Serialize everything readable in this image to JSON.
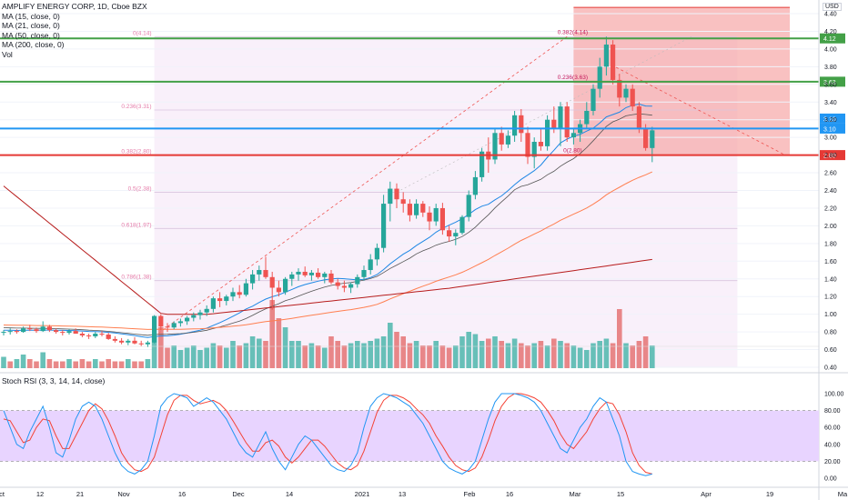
{
  "legend": {
    "symbol": "AMPLIFY ENERGY CORP, 1D, Cboe BZX",
    "studies": [
      "MA (15, close, 0)",
      "MA (21, close, 0)",
      "MA (50, close, 0)",
      "MA (200, close, 0)",
      "Vol"
    ]
  },
  "rsi_title": "Stoch RSI (3, 3, 14, 14, close)",
  "currency": "USD",
  "colors": {
    "up": "#26a69a",
    "down": "#ef5350",
    "ma15": "#1e88e5",
    "ma21": "#555555",
    "ma50": "#ff7f50",
    "ma200": "#b71c1c",
    "fib": "#e91e63",
    "line_green": "#43a047",
    "line_blue": "#2196f3",
    "line_red": "#e53935",
    "rsi_k": "#2196f3",
    "rsi_d": "#f44336",
    "rsi_band": "#e8d4ff"
  },
  "chart_data": {
    "type": "candlestick",
    "price_axis": {
      "min": 0.4,
      "max": 4.4,
      "ticks": [
        "0.40",
        "0.60",
        "0.80",
        "1.00",
        "1.20",
        "1.40",
        "1.60",
        "1.80",
        "2.00",
        "2.20",
        "2.40",
        "2.60",
        "2.80",
        "3.00",
        "3.20",
        "3.40",
        "3.60",
        "3.80",
        "4.00",
        "4.20",
        "4.40"
      ]
    },
    "time_labels": [
      "ct",
      "12",
      "21",
      "Nov",
      "16",
      "Dec",
      "14",
      "2021",
      "13",
      "Feb",
      "16",
      "Mar",
      "15",
      "Apr",
      "19",
      "Ma"
    ],
    "horizontal_lines": [
      {
        "price": 4.12,
        "label": "4.12",
        "color": "#43a047"
      },
      {
        "price": 3.63,
        "label": "3.63",
        "color": "#43a047"
      },
      {
        "price": 3.1,
        "label": "3.10",
        "color": "#2196f3"
      },
      {
        "price": 2.8,
        "label": "2.80",
        "color": "#e53935"
      }
    ],
    "price_labels_extra": [
      "3.10"
    ],
    "fib_levels": [
      {
        "label": "0(4.14)",
        "price": 4.14
      },
      {
        "label": "0.236(3.31)",
        "price": 3.31
      },
      {
        "label": "0.382(2.80)",
        "price": 2.8
      },
      {
        "label": "0.5(2.38)",
        "price": 2.38
      },
      {
        "label": "0.618(1.97)",
        "price": 1.97
      },
      {
        "label": "0.786(1.38)",
        "price": 1.38
      }
    ],
    "right_fib_labels": [
      {
        "label": "0.382(4.14)",
        "price": 4.14
      },
      {
        "label": "0.236(3.63)",
        "price": 3.63
      },
      {
        "label": "0(2.80)",
        "price": 2.8
      }
    ],
    "candles": [
      [
        0.79,
        0.82,
        0.76,
        0.8
      ],
      [
        0.8,
        0.84,
        0.77,
        0.81
      ],
      [
        0.81,
        0.83,
        0.78,
        0.8
      ],
      [
        0.8,
        0.86,
        0.79,
        0.84
      ],
      [
        0.84,
        0.88,
        0.81,
        0.83
      ],
      [
        0.83,
        0.85,
        0.79,
        0.81
      ],
      [
        0.81,
        0.92,
        0.8,
        0.86
      ],
      [
        0.86,
        0.88,
        0.8,
        0.82
      ],
      [
        0.82,
        0.84,
        0.78,
        0.8
      ],
      [
        0.8,
        0.82,
        0.76,
        0.79
      ],
      [
        0.79,
        0.83,
        0.77,
        0.81
      ],
      [
        0.81,
        0.84,
        0.78,
        0.78
      ],
      [
        0.78,
        0.8,
        0.74,
        0.76
      ],
      [
        0.76,
        0.78,
        0.72,
        0.75
      ],
      [
        0.75,
        0.8,
        0.73,
        0.78
      ],
      [
        0.78,
        0.81,
        0.75,
        0.77
      ],
      [
        0.77,
        0.79,
        0.71,
        0.72
      ],
      [
        0.72,
        0.75,
        0.68,
        0.7
      ],
      [
        0.7,
        0.73,
        0.66,
        0.68
      ],
      [
        0.68,
        0.72,
        0.65,
        0.7
      ],
      [
        0.7,
        0.74,
        0.66,
        0.67
      ],
      [
        0.67,
        0.7,
        0.64,
        0.66
      ],
      [
        0.66,
        0.7,
        0.63,
        0.68
      ],
      [
        0.68,
        0.99,
        0.67,
        0.98
      ],
      [
        0.98,
        1.0,
        0.82,
        0.86
      ],
      [
        0.86,
        0.9,
        0.8,
        0.85
      ],
      [
        0.85,
        0.92,
        0.83,
        0.9
      ],
      [
        0.9,
        0.95,
        0.86,
        0.92
      ],
      [
        0.92,
        0.98,
        0.88,
        0.96
      ],
      [
        0.96,
        1.02,
        0.92,
        0.99
      ],
      [
        0.99,
        1.05,
        0.94,
        1.02
      ],
      [
        1.02,
        1.1,
        0.98,
        1.06
      ],
      [
        1.06,
        1.2,
        1.02,
        1.18
      ],
      [
        1.18,
        1.25,
        1.08,
        1.15
      ],
      [
        1.15,
        1.22,
        1.1,
        1.2
      ],
      [
        1.2,
        1.3,
        1.15,
        1.25
      ],
      [
        1.25,
        1.33,
        1.18,
        1.22
      ],
      [
        1.22,
        1.4,
        1.2,
        1.35
      ],
      [
        1.35,
        1.5,
        1.28,
        1.45
      ],
      [
        1.45,
        1.55,
        1.38,
        1.5
      ],
      [
        1.5,
        1.65,
        1.4,
        1.42
      ],
      [
        1.42,
        1.48,
        1.05,
        1.3
      ],
      [
        1.3,
        1.38,
        1.2,
        1.25
      ],
      [
        1.25,
        1.42,
        1.22,
        1.4
      ],
      [
        1.4,
        1.48,
        1.32,
        1.45
      ],
      [
        1.45,
        1.52,
        1.38,
        1.48
      ],
      [
        1.48,
        1.54,
        1.42,
        1.44
      ],
      [
        1.44,
        1.5,
        1.38,
        1.47
      ],
      [
        1.47,
        1.52,
        1.4,
        1.42
      ],
      [
        1.42,
        1.48,
        1.35,
        1.46
      ],
      [
        1.46,
        1.5,
        1.34,
        1.36
      ],
      [
        1.36,
        1.4,
        1.28,
        1.32
      ],
      [
        1.32,
        1.38,
        1.25,
        1.3
      ],
      [
        1.3,
        1.36,
        1.24,
        1.34
      ],
      [
        1.34,
        1.45,
        1.3,
        1.42
      ],
      [
        1.42,
        1.55,
        1.38,
        1.5
      ],
      [
        1.5,
        1.68,
        1.45,
        1.62
      ],
      [
        1.62,
        1.8,
        1.55,
        1.75
      ],
      [
        1.75,
        2.35,
        1.7,
        2.25
      ],
      [
        2.25,
        2.5,
        2.05,
        2.42
      ],
      [
        2.42,
        2.48,
        2.2,
        2.3
      ],
      [
        2.3,
        2.38,
        2.15,
        2.25
      ],
      [
        2.25,
        2.3,
        2.05,
        2.12
      ],
      [
        2.12,
        2.3,
        2.08,
        2.25
      ],
      [
        2.25,
        2.28,
        2.1,
        2.15
      ],
      [
        2.15,
        2.22,
        1.95,
        2.05
      ],
      [
        2.05,
        2.25,
        2.0,
        2.2
      ],
      [
        2.2,
        2.26,
        1.9,
        1.95
      ],
      [
        1.95,
        2.0,
        1.82,
        1.88
      ],
      [
        1.88,
        1.96,
        1.78,
        1.92
      ],
      [
        1.92,
        2.12,
        1.9,
        2.1
      ],
      [
        2.1,
        2.4,
        2.05,
        2.35
      ],
      [
        2.35,
        2.62,
        2.3,
        2.55
      ],
      [
        2.55,
        2.88,
        2.5,
        2.84
      ],
      [
        2.84,
        3.0,
        2.6,
        2.75
      ],
      [
        2.75,
        3.1,
        2.7,
        3.05
      ],
      [
        3.05,
        3.12,
        2.85,
        2.92
      ],
      [
        2.92,
        3.08,
        2.88,
        3.02
      ],
      [
        3.02,
        3.3,
        2.95,
        3.25
      ],
      [
        3.25,
        3.32,
        2.95,
        3.05
      ],
      [
        3.05,
        3.12,
        2.7,
        2.78
      ],
      [
        2.78,
        3.0,
        2.65,
        2.95
      ],
      [
        2.95,
        3.1,
        2.85,
        2.9
      ],
      [
        2.9,
        3.25,
        2.85,
        3.2
      ],
      [
        3.2,
        3.35,
        3.05,
        3.1
      ],
      [
        3.1,
        3.4,
        2.9,
        3.35
      ],
      [
        3.35,
        3.4,
        2.95,
        3.0
      ],
      [
        3.0,
        3.1,
        2.92,
        3.05
      ],
      [
        3.05,
        3.2,
        2.95,
        3.15
      ],
      [
        3.15,
        3.4,
        3.1,
        3.3
      ],
      [
        3.3,
        3.6,
        3.25,
        3.55
      ],
      [
        3.55,
        3.9,
        3.45,
        3.8
      ],
      [
        3.8,
        4.14,
        3.7,
        4.05
      ],
      [
        4.05,
        4.1,
        3.6,
        3.65
      ],
      [
        3.65,
        3.72,
        3.35,
        3.45
      ],
      [
        3.45,
        3.6,
        3.4,
        3.55
      ],
      [
        3.55,
        3.6,
        3.3,
        3.35
      ],
      [
        3.35,
        3.4,
        3.05,
        3.1
      ],
      [
        3.1,
        3.15,
        2.85,
        2.88
      ],
      [
        2.88,
        3.12,
        2.72,
        3.08
      ]
    ],
    "volume_axis_note": "relative volume bars",
    "volume": [
      5,
      3,
      4,
      6,
      4,
      3,
      7,
      4,
      3,
      3,
      4,
      3,
      4,
      3,
      4,
      3,
      4,
      3,
      3,
      4,
      3,
      3,
      4,
      14,
      18,
      9,
      10,
      8,
      9,
      10,
      8,
      9,
      11,
      10,
      9,
      12,
      10,
      11,
      14,
      13,
      12,
      30,
      22,
      18,
      12,
      12,
      10,
      11,
      10,
      9,
      14,
      12,
      10,
      11,
      12,
      11,
      12,
      13,
      14,
      20,
      16,
      14,
      11,
      12,
      10,
      10,
      12,
      10,
      9,
      10,
      14,
      16,
      15,
      12,
      13,
      14,
      12,
      11,
      13,
      11,
      10,
      11,
      12,
      10,
      13,
      12,
      11,
      10,
      9,
      8,
      11,
      12,
      13,
      11,
      26,
      11,
      10,
      12,
      14,
      10
    ],
    "volume_up": [
      true,
      false,
      true,
      true,
      false,
      false,
      true,
      false,
      false,
      false,
      true,
      false,
      false,
      false,
      true,
      false,
      false,
      false,
      false,
      true,
      false,
      false,
      true,
      true,
      false,
      false,
      true,
      true,
      true,
      true,
      true,
      true,
      true,
      false,
      true,
      true,
      false,
      true,
      true,
      true,
      false,
      false,
      false,
      true,
      true,
      true,
      false,
      true,
      false,
      true,
      false,
      false,
      false,
      true,
      true,
      true,
      true,
      true,
      true,
      true,
      false,
      false,
      false,
      true,
      false,
      false,
      true,
      false,
      false,
      true,
      true,
      true,
      true,
      true,
      false,
      true,
      false,
      true,
      true,
      false,
      false,
      true,
      false,
      true,
      false,
      true,
      false,
      true,
      true,
      true,
      true,
      true,
      true,
      false,
      false,
      true,
      false,
      false,
      false,
      true
    ],
    "stoch_rsi": {
      "axis_ticks": [
        "0.00",
        "20.00",
        "40.00",
        "60.00",
        "80.00",
        "100.00"
      ],
      "band": [
        20,
        80
      ],
      "k": [
        80,
        60,
        40,
        35,
        55,
        70,
        85,
        60,
        30,
        25,
        45,
        70,
        85,
        90,
        85,
        70,
        50,
        30,
        15,
        8,
        5,
        10,
        20,
        50,
        85,
        95,
        100,
        98,
        95,
        85,
        90,
        95,
        90,
        80,
        70,
        55,
        40,
        30,
        25,
        40,
        55,
        35,
        20,
        10,
        25,
        40,
        50,
        45,
        35,
        25,
        15,
        10,
        8,
        15,
        30,
        60,
        85,
        95,
        100,
        98,
        95,
        90,
        85,
        75,
        65,
        50,
        35,
        20,
        12,
        8,
        5,
        10,
        20,
        45,
        70,
        90,
        100,
        100,
        100,
        98,
        95,
        90,
        80,
        65,
        50,
        35,
        30,
        45,
        60,
        70,
        85,
        95,
        90,
        70,
        50,
        20,
        8,
        5,
        3,
        5
      ],
      "d": [
        70,
        68,
        55,
        42,
        45,
        60,
        70,
        68,
        50,
        35,
        35,
        50,
        65,
        80,
        88,
        82,
        68,
        50,
        30,
        18,
        10,
        8,
        12,
        25,
        50,
        75,
        92,
        98,
        98,
        92,
        88,
        90,
        92,
        88,
        80,
        68,
        55,
        42,
        32,
        32,
        42,
        45,
        38,
        25,
        18,
        25,
        35,
        45,
        45,
        38,
        28,
        18,
        12,
        10,
        15,
        32,
        55,
        78,
        92,
        98,
        98,
        95,
        90,
        82,
        75,
        65,
        50,
        38,
        25,
        15,
        10,
        8,
        12,
        25,
        45,
        68,
        85,
        95,
        100,
        100,
        98,
        95,
        90,
        80,
        68,
        52,
        40,
        35,
        45,
        55,
        70,
        82,
        90,
        88,
        75,
        55,
        30,
        15,
        7,
        5
      ]
    }
  }
}
